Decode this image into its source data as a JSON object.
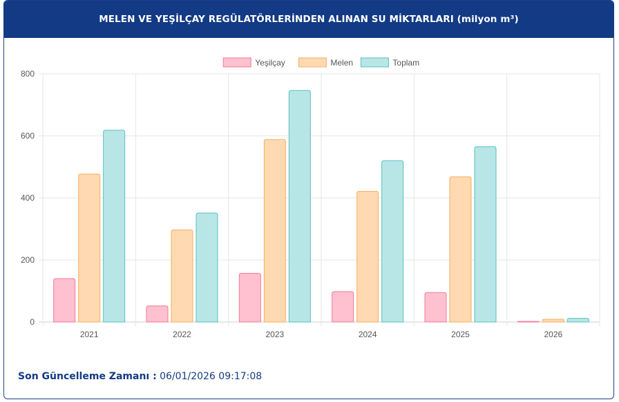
{
  "header": {
    "title": "MELEN VE YEŞİLÇAY REGÜLATÖRLERİNDEN ALINAN SU MİKTARLARI (milyon m³)"
  },
  "footer": {
    "label": "Son Güncelleme Zamanı :",
    "value": "06/01/2026 09:17:08"
  },
  "chart_data": {
    "type": "bar",
    "title": "MELEN VE YEŞİLÇAY REGÜLATÖRLERİNDEN ALINAN SU MİKTARLARI (milyon m³)",
    "categories": [
      "2021",
      "2022",
      "2023",
      "2024",
      "2025",
      "2026"
    ],
    "series": [
      {
        "name": "Yeşilçay",
        "values": [
          140,
          52,
          157,
          98,
          95,
          2
        ],
        "fill": "#ffc0cf",
        "stroke": "#f07a97"
      },
      {
        "name": "Melen",
        "values": [
          477,
          297,
          588,
          421,
          468,
          9
        ],
        "fill": "#fed9b1",
        "stroke": "#f5b05e"
      },
      {
        "name": "Toplam",
        "values": [
          618,
          351,
          746,
          520,
          565,
          12
        ],
        "fill": "#b8e6e6",
        "stroke": "#55bfbf"
      }
    ],
    "ylim": [
      0,
      800
    ],
    "yticks": [
      0,
      200,
      400,
      600,
      800
    ],
    "grid": true,
    "legend": "top-center"
  }
}
